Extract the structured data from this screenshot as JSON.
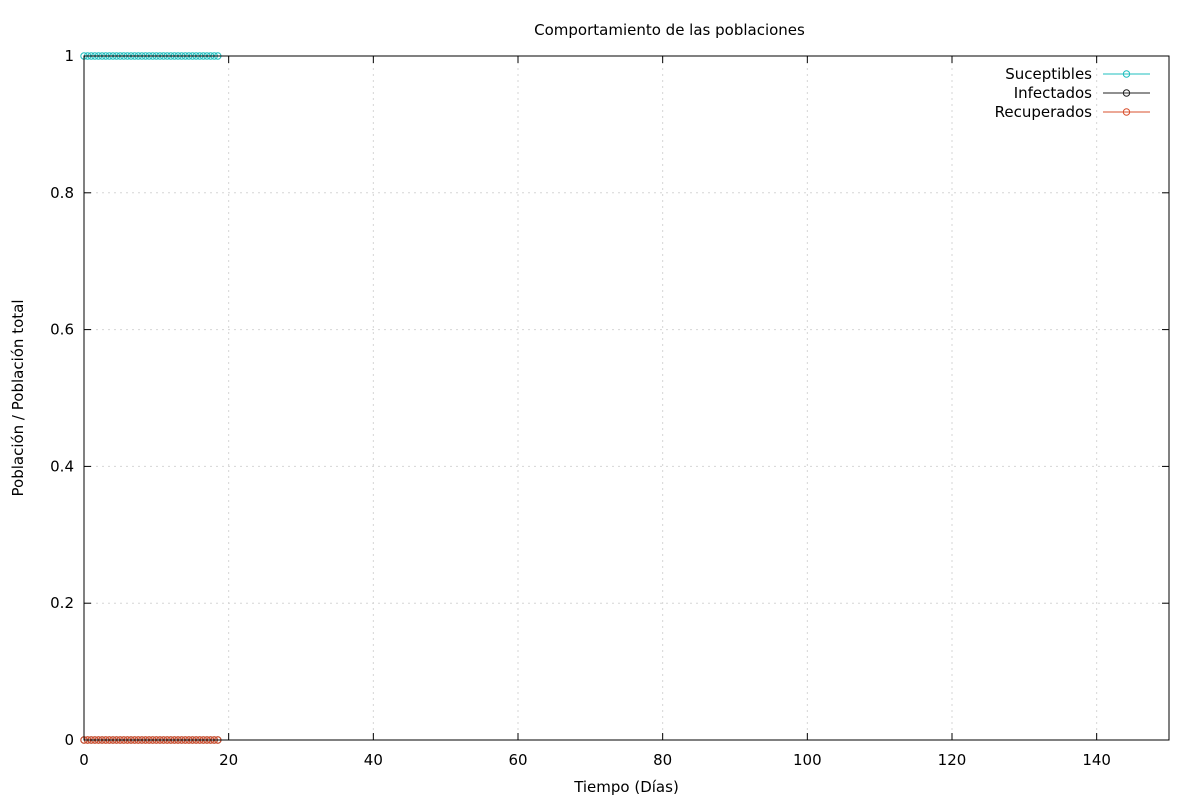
{
  "chart_data": {
    "type": "line",
    "title": "Comportamiento de las poblaciones",
    "xlabel": "Tiempo (Días)",
    "ylabel": "Población / Población total",
    "xlim": [
      0,
      150
    ],
    "ylim": [
      0,
      1
    ],
    "xticks": [
      0,
      20,
      40,
      60,
      80,
      100,
      120,
      140
    ],
    "xtick_labels": [
      "0",
      "20",
      "40",
      "60",
      "80",
      "100",
      "120",
      "140"
    ],
    "yticks": [
      0,
      0.2,
      0.4,
      0.6,
      0.8,
      1
    ],
    "ytick_labels": [
      "0",
      "0.2",
      "0.4",
      "0.6",
      "0.8",
      "1"
    ],
    "grid": true,
    "legend_position": "top-right",
    "x": [
      0,
      0.5,
      1,
      1.5,
      2,
      2.5,
      3,
      3.5,
      4,
      4.5,
      5,
      5.5,
      6,
      6.5,
      7,
      7.5,
      8,
      8.5,
      9,
      9.5,
      10,
      10.5,
      11,
      11.5,
      12,
      12.5,
      13,
      13.5,
      14,
      14.5,
      15,
      15.5,
      16,
      16.5,
      17,
      17.5,
      18,
      18.5
    ],
    "series": [
      {
        "name": "Suceptibles",
        "color": "#1fbfbf",
        "values": [
          1,
          1,
          1,
          1,
          1,
          1,
          1,
          1,
          1,
          1,
          1,
          1,
          1,
          1,
          1,
          1,
          1,
          1,
          1,
          1,
          1,
          1,
          1,
          1,
          1,
          1,
          1,
          1,
          1,
          1,
          1,
          1,
          1,
          1,
          1,
          1,
          1,
          1
        ]
      },
      {
        "name": "Infectados",
        "color": "#222222",
        "values": [
          0,
          0,
          0,
          0,
          0,
          0,
          0,
          0,
          0,
          0,
          0,
          0,
          0,
          0,
          0,
          0,
          0,
          0,
          0,
          0,
          0,
          0,
          0,
          0,
          0,
          0,
          0,
          0,
          0,
          0,
          0,
          0,
          0,
          0,
          0,
          0,
          0,
          0
        ]
      },
      {
        "name": "Recuperados",
        "color": "#d9502e",
        "values": [
          0,
          0,
          0,
          0,
          0,
          0,
          0,
          0,
          0,
          0,
          0,
          0,
          0,
          0,
          0,
          0,
          0,
          0,
          0,
          0,
          0,
          0,
          0,
          0,
          0,
          0,
          0,
          0,
          0,
          0,
          0,
          0,
          0,
          0,
          0,
          0,
          0,
          0
        ]
      }
    ]
  }
}
